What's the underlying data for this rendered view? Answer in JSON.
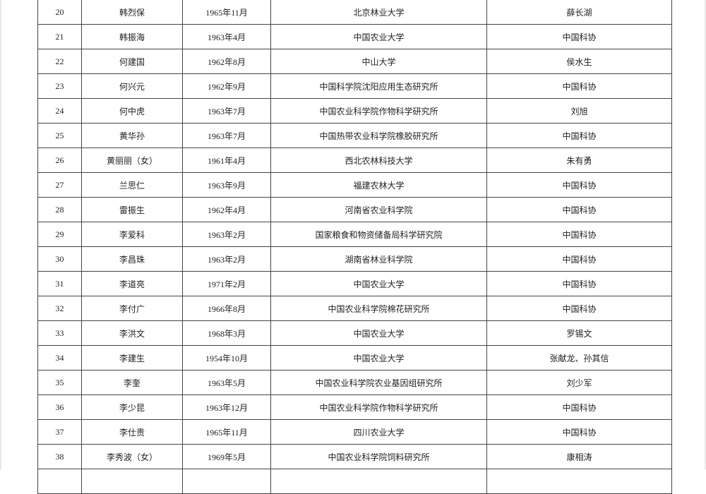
{
  "rows": [
    {
      "no": "20",
      "name": "韩烈保",
      "birth": "1965年11月",
      "unit": "北京林业大学",
      "recommender": "薛长湖"
    },
    {
      "no": "21",
      "name": "韩振海",
      "birth": "1963年4月",
      "unit": "中国农业大学",
      "recommender": "中国科协"
    },
    {
      "no": "22",
      "name": "何建国",
      "birth": "1962年8月",
      "unit": "中山大学",
      "recommender": "侯水生"
    },
    {
      "no": "23",
      "name": "何兴元",
      "birth": "1962年9月",
      "unit": "中国科学院沈阳应用生态研究所",
      "recommender": "中国科协"
    },
    {
      "no": "24",
      "name": "何中虎",
      "birth": "1963年7月",
      "unit": "中国农业科学院作物科学研究所",
      "recommender": "刘旭"
    },
    {
      "no": "25",
      "name": "黄华孙",
      "birth": "1963年7月",
      "unit": "中国热带农业科学院橡胶研究所",
      "recommender": "中国科协"
    },
    {
      "no": "26",
      "name": "黄丽丽（女）",
      "birth": "1961年4月",
      "unit": "西北农林科技大学",
      "recommender": "朱有勇"
    },
    {
      "no": "27",
      "name": "兰思仁",
      "birth": "1963年9月",
      "unit": "福建农林大学",
      "recommender": "中国科协"
    },
    {
      "no": "28",
      "name": "雷振生",
      "birth": "1962年4月",
      "unit": "河南省农业科学院",
      "recommender": "中国科协"
    },
    {
      "no": "29",
      "name": "李爱科",
      "birth": "1963年2月",
      "unit": "国家粮食和物资储备局科学研究院",
      "recommender": "中国科协"
    },
    {
      "no": "30",
      "name": "李昌珠",
      "birth": "1963年2月",
      "unit": "湖南省林业科学院",
      "recommender": "中国科协"
    },
    {
      "no": "31",
      "name": "李道亮",
      "birth": "1971年2月",
      "unit": "中国农业大学",
      "recommender": "中国科协"
    },
    {
      "no": "32",
      "name": "李付广",
      "birth": "1966年8月",
      "unit": "中国农业科学院棉花研究所",
      "recommender": "中国科协"
    },
    {
      "no": "33",
      "name": "李洪文",
      "birth": "1968年3月",
      "unit": "中国农业大学",
      "recommender": "罗锡文"
    },
    {
      "no": "34",
      "name": "李建生",
      "birth": "1954年10月",
      "unit": "中国农业大学",
      "recommender": "张献龙、孙其信"
    },
    {
      "no": "35",
      "name": "李奎",
      "birth": "1963年5月",
      "unit": "中国农业科学院农业基因组研究所",
      "recommender": "刘少军"
    },
    {
      "no": "36",
      "name": "李少昆",
      "birth": "1963年12月",
      "unit": "中国农业科学院作物科学研究所",
      "recommender": "中国科协"
    },
    {
      "no": "37",
      "name": "李仕贵",
      "birth": "1965年11月",
      "unit": "四川农业大学",
      "recommender": "中国科协"
    },
    {
      "no": "38",
      "name": "李秀波（女）",
      "birth": "1969年5月",
      "unit": "中国农业科学院饲料研究所",
      "recommender": "康相涛"
    },
    {
      "no": "",
      "name": "",
      "birth": "",
      "unit": "",
      "recommender": ""
    }
  ]
}
